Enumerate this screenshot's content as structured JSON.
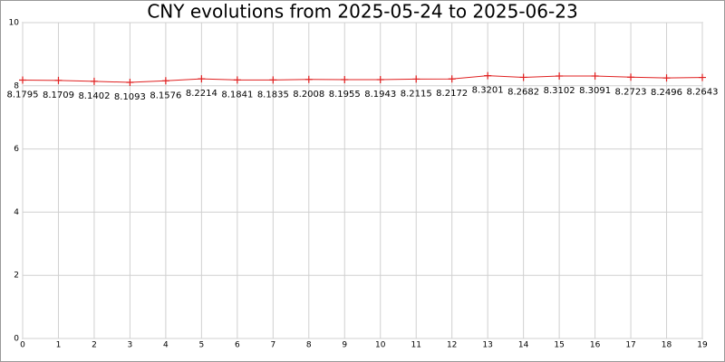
{
  "chart_data": {
    "type": "line",
    "title": "CNY evolutions from 2025-05-24 to 2025-06-23",
    "x": [
      0,
      1,
      2,
      3,
      4,
      5,
      6,
      7,
      8,
      9,
      10,
      11,
      12,
      13,
      14,
      15,
      16,
      17,
      18,
      19
    ],
    "series": [
      {
        "color": "#e02020",
        "values": [
          8.1795,
          8.1709,
          8.1402,
          8.1093,
          8.1576,
          8.2214,
          8.1841,
          8.1835,
          8.2008,
          8.1955,
          8.1943,
          8.2115,
          8.2172,
          8.3201,
          8.2682,
          8.3102,
          8.3091,
          8.2723,
          8.2496,
          8.2643
        ]
      }
    ],
    "xlim": [
      0,
      19
    ],
    "xticks": [
      0,
      1,
      2,
      3,
      4,
      5,
      6,
      7,
      8,
      9,
      10,
      11,
      12,
      13,
      14,
      15,
      16,
      17,
      18,
      19
    ],
    "ylim": [
      0,
      10
    ],
    "yticks": [
      0,
      2,
      4,
      6,
      8,
      10
    ],
    "grid": true
  }
}
